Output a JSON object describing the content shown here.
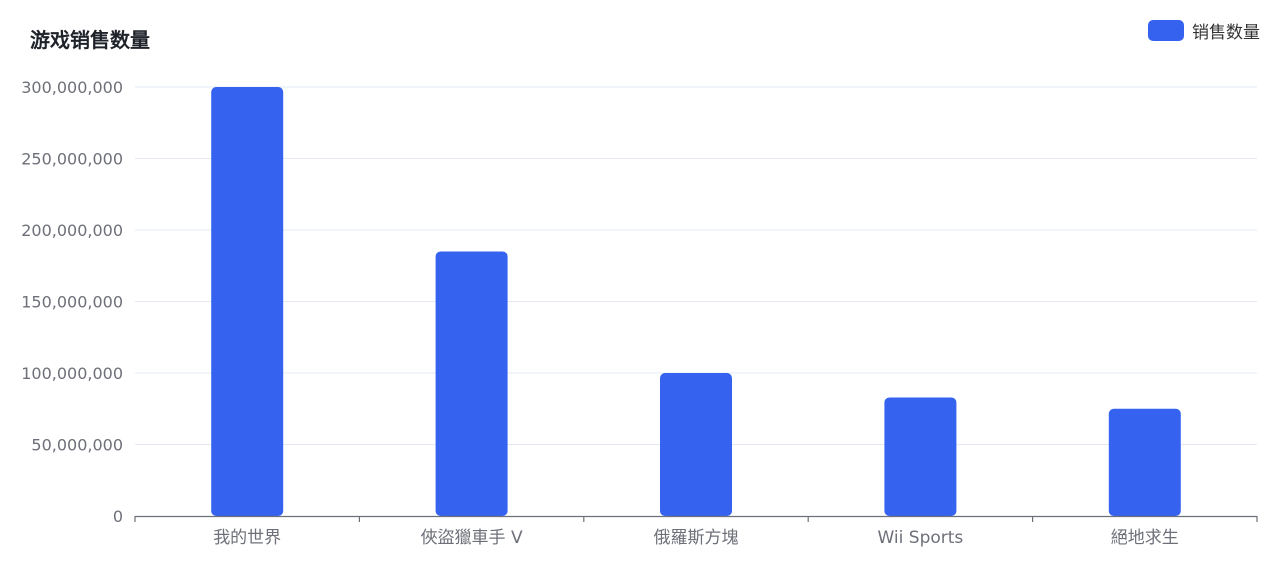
{
  "chart_data": {
    "type": "bar",
    "title": "游戏销售数量",
    "categories": [
      "我的世界",
      "俠盜獵車手 V",
      "俄羅斯方塊",
      "Wii Sports",
      "絕地求生"
    ],
    "series": [
      {
        "name": "销售数量",
        "values": [
          300000000,
          185000000,
          100000000,
          82900000,
          75000000
        ]
      }
    ],
    "yticks": [
      "0",
      "50,000,000",
      "100,000,000",
      "150,000,000",
      "200,000,000",
      "250,000,000",
      "300,000,000"
    ],
    "ylim": [
      0,
      300000000
    ],
    "xlabel": "",
    "ylabel": "",
    "grid": true,
    "legend_position": "top-right",
    "colors": {
      "bar": "#3563f0",
      "grid": "#e3e8f2",
      "axis": "#6e7079"
    }
  }
}
